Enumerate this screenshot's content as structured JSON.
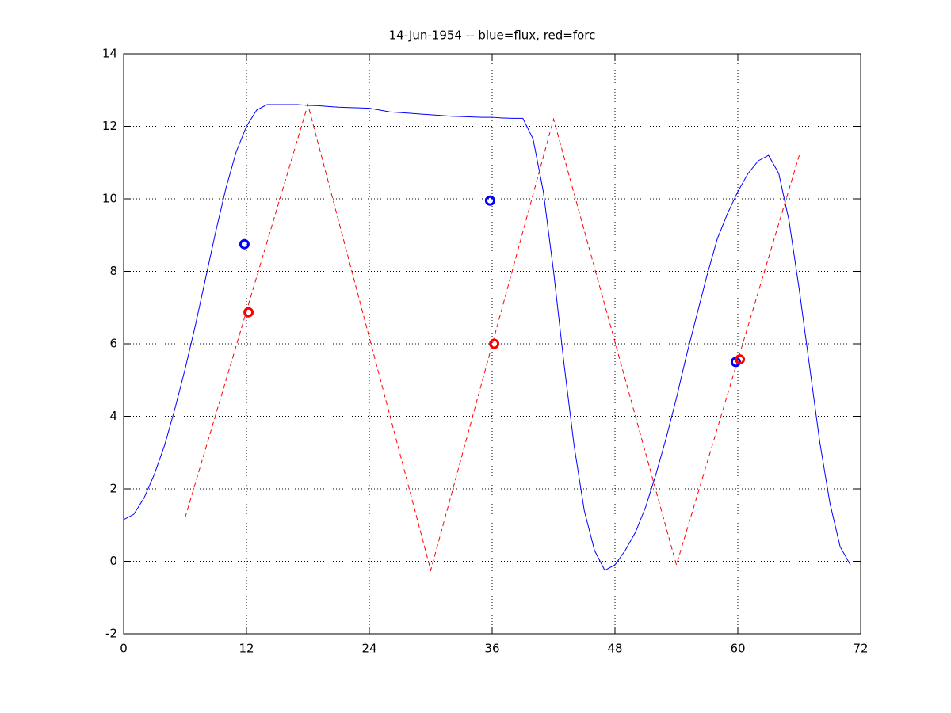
{
  "chart_data": {
    "type": "line",
    "title": "14-Jun-1954 -- blue=flux, red=forc",
    "xlim": [
      0,
      72
    ],
    "ylim": [
      -2,
      14
    ],
    "xticks": [
      0,
      12,
      24,
      36,
      48,
      60,
      72
    ],
    "yticks": [
      -2,
      0,
      2,
      4,
      6,
      8,
      10,
      12,
      14
    ],
    "grid": true,
    "series": [
      {
        "color": "#0000ff",
        "style": "solid",
        "x": [
          0,
          1,
          2,
          3,
          4,
          5,
          6,
          7,
          8,
          9,
          10,
          11,
          12,
          13,
          14,
          15,
          16,
          17,
          18,
          19,
          20,
          21,
          22,
          23,
          24,
          25,
          26,
          27,
          28,
          29,
          30,
          31,
          32,
          33,
          34,
          35,
          36,
          37,
          38,
          39,
          40,
          41,
          42,
          43,
          44,
          45,
          46,
          47,
          48,
          49,
          50,
          51,
          52,
          53,
          54,
          55,
          56,
          57,
          58,
          59,
          60,
          61,
          62,
          63,
          64,
          65,
          66,
          67,
          68,
          69,
          70,
          71
        ],
        "values": [
          1.15,
          1.3,
          1.75,
          2.4,
          3.2,
          4.2,
          5.3,
          6.5,
          7.8,
          9.1,
          10.3,
          11.3,
          12.0,
          12.45,
          12.6,
          12.6,
          12.6,
          12.6,
          12.58,
          12.57,
          12.55,
          12.53,
          12.52,
          12.51,
          12.5,
          12.45,
          12.4,
          12.38,
          12.36,
          12.34,
          12.32,
          12.3,
          12.28,
          12.27,
          12.26,
          12.25,
          12.25,
          12.23,
          12.22,
          12.22,
          11.65,
          10.2,
          8.0,
          5.5,
          3.2,
          1.4,
          0.3,
          -0.25,
          -0.1,
          0.3,
          0.8,
          1.5,
          2.4,
          3.4,
          4.5,
          5.7,
          6.8,
          7.9,
          8.9,
          9.6,
          10.2,
          10.7,
          11.05,
          11.2,
          10.7,
          9.4,
          7.5,
          5.4,
          3.3,
          1.6,
          0.4,
          -0.1
        ]
      },
      {
        "color": "#ff0000",
        "style": "dashed",
        "x": [
          6,
          18,
          30,
          42,
          54,
          66
        ],
        "values": [
          1.2,
          12.6,
          -0.25,
          12.2,
          -0.1,
          11.2
        ]
      },
      {
        "color": "#0000ff",
        "style": "markers",
        "x": [
          11.8,
          35.8,
          59.8
        ],
        "values": [
          8.75,
          9.95,
          5.5
        ]
      },
      {
        "color": "#ff0000",
        "style": "markers",
        "x": [
          12.2,
          36.2,
          60.2
        ],
        "values": [
          6.87,
          6.0,
          5.57
        ]
      }
    ]
  }
}
